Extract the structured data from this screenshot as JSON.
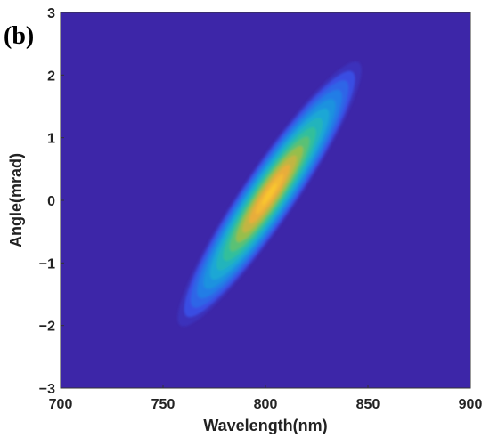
{
  "panel_label": "(b)",
  "chart_data": {
    "type": "heatmap",
    "title": "",
    "xlabel": "Wavelength(nm)",
    "ylabel": "Angle(mrad)",
    "xlim": [
      700,
      900
    ],
    "ylim": [
      -3,
      3
    ],
    "xticks": [
      "700",
      "750",
      "800",
      "850",
      "900"
    ],
    "yticks": [
      "3",
      "2",
      "1",
      "0",
      "−1",
      "−2",
      "−3"
    ],
    "grid": false,
    "colormap": "parula",
    "background_color": "#3d26a8",
    "peak": {
      "wavelength": 802,
      "angle": 0.1
    },
    "orientation": "tilted ellipse rising from lower-left to upper-right",
    "extent": {
      "wavelength_range": [
        758,
        845
      ],
      "angle_range": [
        -2.0,
        2.2
      ]
    }
  }
}
